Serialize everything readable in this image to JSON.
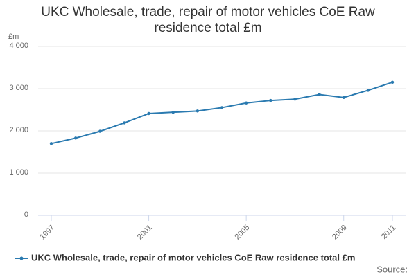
{
  "chart_data": {
    "type": "line",
    "title": "UKC Wholesale, trade, repair of motor vehicles CoE Raw residence total £m",
    "y_unit": "£m",
    "source": "Source:",
    "x": [
      1997,
      1998,
      1999,
      2000,
      2001,
      2002,
      2003,
      2004,
      2005,
      2006,
      2007,
      2008,
      2009,
      2010,
      2011
    ],
    "xlim": [
      1997,
      2011
    ],
    "xticks": [
      1997,
      2001,
      2005,
      2009,
      2011
    ],
    "series": [
      {
        "name": "UKC Wholesale, trade, repair of motor vehicles CoE Raw residence total £m",
        "color": "#2a7ab0",
        "values": [
          1700,
          1830,
          1990,
          2190,
          2410,
          2440,
          2470,
          2550,
          2660,
          2720,
          2750,
          2860,
          2790,
          2960,
          3150
        ]
      }
    ],
    "ylim": [
      0,
      4000
    ],
    "yticks": [
      0,
      {
        "value": 1000,
        "label": "1 000"
      },
      {
        "value": 2000,
        "label": "2 000"
      },
      {
        "value": 3000,
        "label": "3 000"
      },
      {
        "value": 4000,
        "label": "4 000"
      }
    ],
    "grid": true
  }
}
